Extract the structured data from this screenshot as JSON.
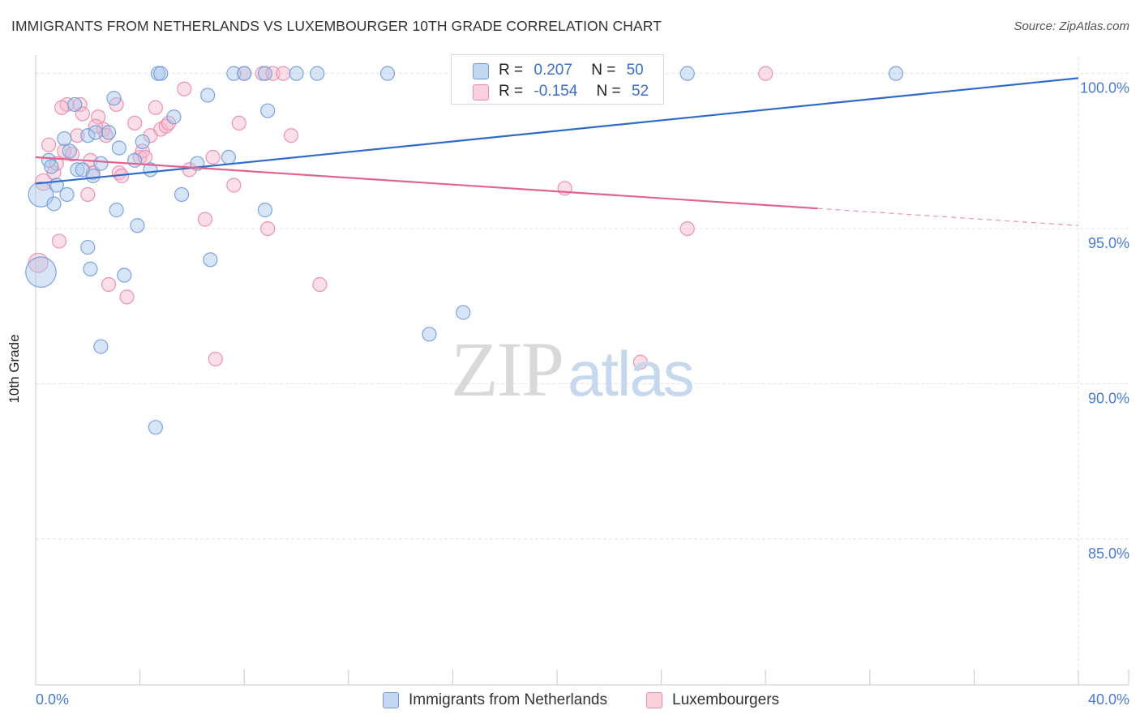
{
  "header": {
    "title": "IMMIGRANTS FROM NETHERLANDS VS LUXEMBOURGER 10TH GRADE CORRELATION CHART",
    "source": "Source: ZipAtlas.com"
  },
  "watermark": {
    "zip": "ZIP",
    "atlas": "atlas"
  },
  "legend": {
    "rows": [
      {
        "r_label": "R =",
        "r_value": "0.207",
        "n_label": "N =",
        "n_value": "50"
      },
      {
        "r_label": "R =",
        "r_value": "-0.154",
        "n_label": "N =",
        "n_value": "52"
      }
    ]
  },
  "colors": {
    "blue_fill": "#a9c6ec",
    "blue_stroke": "#6f9bd8",
    "blue_line": "#2f6cc7",
    "pink_fill": "#f7b8cb",
    "pink_stroke": "#e88aa8",
    "pink_line": "#e0648d",
    "grid": "#e2e2e2",
    "tick_text": "#4a7bd0"
  },
  "chart_data": {
    "type": "scatter",
    "title": "IMMIGRANTS FROM NETHERLANDS VS LUXEMBOURGER 10TH GRADE CORRELATION CHART",
    "xlabel": "",
    "ylabel": "10th Grade",
    "xlim": [
      0,
      40
    ],
    "ylim": [
      80.3,
      100.8
    ],
    "x_tick_labels": [
      "0.0%",
      "40.0%"
    ],
    "y_ticks": [
      85,
      90,
      95,
      100
    ],
    "y_tick_labels": [
      "85.0%",
      "90.0%",
      "95.0%",
      "100.0%"
    ],
    "grid": true,
    "legend_position": "top-center",
    "series": [
      {
        "name": "Immigrants from Netherlands",
        "color": "blue",
        "R": 0.207,
        "N": 50,
        "trend": {
          "x0": 0.0,
          "y0": 96.45,
          "x1": 40.0,
          "y1": 99.85,
          "solid_to": 40.0
        },
        "points": [
          [
            0.2,
            96.1,
            18
          ],
          [
            0.5,
            97.2,
            10
          ],
          [
            0.7,
            95.8,
            10
          ],
          [
            0.6,
            97.0,
            10
          ],
          [
            0.8,
            96.4,
            10
          ],
          [
            1.1,
            97.9,
            10
          ],
          [
            1.2,
            96.1,
            10
          ],
          [
            1.3,
            97.5,
            10
          ],
          [
            1.5,
            99.0,
            10
          ],
          [
            1.6,
            96.9,
            10
          ],
          [
            1.8,
            96.9,
            10
          ],
          [
            2.0,
            98.0,
            10
          ],
          [
            2.2,
            96.7,
            10
          ],
          [
            2.3,
            98.1,
            10
          ],
          [
            2.5,
            97.1,
            10
          ],
          [
            2.8,
            98.1,
            10
          ],
          [
            3.0,
            99.2,
            10
          ],
          [
            3.1,
            95.6,
            10
          ],
          [
            3.2,
            97.6,
            10
          ],
          [
            3.4,
            93.5,
            10
          ],
          [
            3.8,
            97.2,
            10
          ],
          [
            3.9,
            95.1,
            10
          ],
          [
            4.1,
            97.8,
            10
          ],
          [
            4.4,
            96.9,
            10
          ],
          [
            4.7,
            100.0,
            10
          ],
          [
            4.8,
            100.0,
            10
          ],
          [
            5.3,
            98.6,
            10
          ],
          [
            5.6,
            96.1,
            10
          ],
          [
            6.2,
            97.1,
            10
          ],
          [
            6.6,
            99.3,
            10
          ],
          [
            7.4,
            97.3,
            10
          ],
          [
            7.6,
            100.0,
            10
          ],
          [
            8.0,
            100.0,
            10
          ],
          [
            8.8,
            100.0,
            10
          ],
          [
            8.9,
            98.8,
            10
          ],
          [
            10.0,
            100.0,
            10
          ],
          [
            10.8,
            100.0,
            10
          ],
          [
            13.5,
            100.0,
            10
          ],
          [
            16.8,
            100.0,
            10
          ],
          [
            25.0,
            100.0,
            10
          ],
          [
            33.0,
            100.0,
            10
          ],
          [
            8.8,
            95.6,
            10
          ],
          [
            2.0,
            94.4,
            10
          ],
          [
            2.1,
            93.7,
            10
          ],
          [
            6.7,
            94.0,
            10
          ],
          [
            2.5,
            91.2,
            10
          ],
          [
            4.6,
            88.6,
            10
          ],
          [
            15.1,
            91.6,
            10
          ],
          [
            16.4,
            92.3,
            10
          ],
          [
            0.2,
            93.6,
            22
          ]
        ]
      },
      {
        "name": "Luxembourgers",
        "color": "pink",
        "R": -0.154,
        "N": 52,
        "trend": {
          "x0": 0.0,
          "y0": 97.3,
          "x1": 40.0,
          "y1": 95.1,
          "solid_to": 30.0
        },
        "points": [
          [
            0.1,
            93.9,
            14
          ],
          [
            0.3,
            96.5,
            12
          ],
          [
            0.5,
            97.7,
            10
          ],
          [
            0.7,
            96.8,
            10
          ],
          [
            0.8,
            97.1,
            10
          ],
          [
            0.9,
            94.6,
            10
          ],
          [
            1.1,
            97.5,
            10
          ],
          [
            1.2,
            99.0,
            10
          ],
          [
            1.4,
            97.4,
            10
          ],
          [
            1.6,
            98.0,
            10
          ],
          [
            1.7,
            99.0,
            10
          ],
          [
            1.8,
            98.7,
            10
          ],
          [
            2.0,
            96.1,
            10
          ],
          [
            2.1,
            97.2,
            10
          ],
          [
            2.2,
            96.8,
            10
          ],
          [
            2.4,
            98.6,
            10
          ],
          [
            2.6,
            98.2,
            10
          ],
          [
            2.7,
            98.0,
            10
          ],
          [
            2.8,
            93.2,
            10
          ],
          [
            3.1,
            99.0,
            10
          ],
          [
            3.2,
            96.8,
            10
          ],
          [
            3.3,
            96.7,
            10
          ],
          [
            3.5,
            92.8,
            10
          ],
          [
            3.8,
            98.4,
            10
          ],
          [
            4.0,
            97.3,
            10
          ],
          [
            4.1,
            97.5,
            10
          ],
          [
            4.2,
            97.3,
            10
          ],
          [
            4.4,
            98.0,
            10
          ],
          [
            4.6,
            98.9,
            10
          ],
          [
            4.8,
            98.2,
            10
          ],
          [
            5.0,
            98.3,
            10
          ],
          [
            5.1,
            98.4,
            10
          ],
          [
            5.7,
            99.5,
            10
          ],
          [
            5.9,
            96.9,
            10
          ],
          [
            6.5,
            95.3,
            10
          ],
          [
            6.8,
            97.3,
            10
          ],
          [
            6.9,
            90.8,
            10
          ],
          [
            7.6,
            96.4,
            10
          ],
          [
            7.8,
            98.4,
            10
          ],
          [
            8.0,
            100.0,
            10
          ],
          [
            8.7,
            100.0,
            10
          ],
          [
            8.9,
            95.0,
            10
          ],
          [
            9.1,
            100.0,
            10
          ],
          [
            9.5,
            100.0,
            10
          ],
          [
            9.8,
            98.0,
            10
          ],
          [
            10.9,
            93.2,
            10
          ],
          [
            20.3,
            96.3,
            10
          ],
          [
            23.2,
            90.7,
            10
          ],
          [
            25.0,
            95.0,
            10
          ],
          [
            28.0,
            100.0,
            10
          ],
          [
            1.0,
            98.9,
            10
          ],
          [
            2.3,
            98.3,
            10
          ]
        ]
      }
    ]
  },
  "bottom_legend": {
    "items": [
      {
        "label": "Immigrants from Netherlands"
      },
      {
        "label": "Luxembourgers"
      }
    ]
  }
}
